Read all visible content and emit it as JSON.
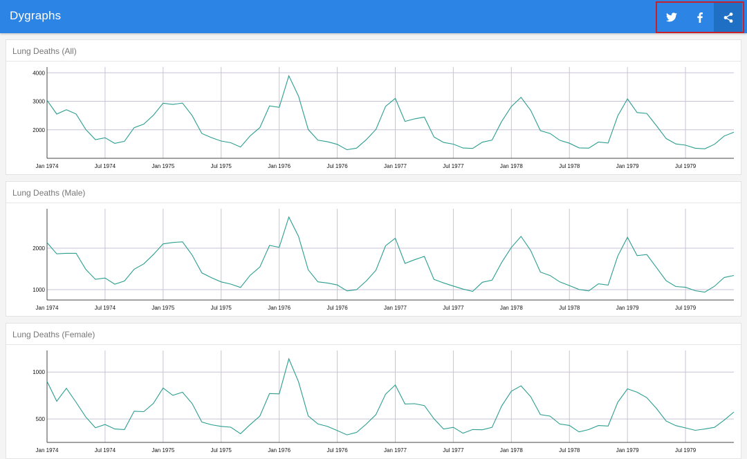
{
  "app": {
    "title": "Dygraphs"
  },
  "share": {
    "buttons": [
      {
        "name": "twitter",
        "icon": "twitter-icon"
      },
      {
        "name": "facebook",
        "icon": "facebook-icon"
      },
      {
        "name": "share",
        "icon": "share-icon"
      }
    ]
  },
  "colors": {
    "header": "#2c84e4",
    "line": "#2a9d8f",
    "highlight_box": "#c8202a"
  },
  "chart_data": [
    {
      "type": "line",
      "title": "Lung Deaths (All)",
      "series_color": "#2a9d8f",
      "x_start": "Jan 1974",
      "x_end": "Dec 1979",
      "x_ticks": [
        "Jan 1974",
        "Jul 1974",
        "Jan 1975",
        "Jul 1975",
        "Jan 1976",
        "Jul 1976",
        "Jan 1977",
        "Jul 1977",
        "Jan 1978",
        "Jul 1978",
        "Jan 1979",
        "Jul 1979"
      ],
      "y_ticks": [
        2000,
        3000,
        4000
      ],
      "ylim": [
        1000,
        4200
      ],
      "grid": true,
      "values": [
        3035,
        2552,
        2704,
        2554,
        2014,
        1655,
        1721,
        1524,
        1596,
        2074,
        2199,
        2512,
        2933,
        2889,
        2938,
        2497,
        1870,
        1726,
        1607,
        1545,
        1396,
        1787,
        2076,
        2837,
        2787,
        3891,
        3179,
        2011,
        1636,
        1580,
        1489,
        1300,
        1356,
        1653,
        2013,
        2823,
        3102,
        2294,
        2385,
        2444,
        1748,
        1554,
        1498,
        1361,
        1346,
        1564,
        1640,
        2293,
        2815,
        3137,
        2679,
        1969,
        1870,
        1633,
        1529,
        1366,
        1357,
        1570,
        1535,
        2491,
        3084,
        2605,
        2573,
        2143,
        1693,
        1504,
        1461,
        1354,
        1333,
        1492,
        1781,
        1915
      ]
    },
    {
      "type": "line",
      "title": "Lung Deaths (Male)",
      "series_color": "#2a9d8f",
      "x_start": "Jan 1974",
      "x_end": "Dec 1979",
      "x_ticks": [
        "Jan 1974",
        "Jul 1974",
        "Jan 1975",
        "Jul 1975",
        "Jan 1976",
        "Jul 1976",
        "Jan 1977",
        "Jul 1977",
        "Jan 1978",
        "Jul 1978",
        "Jan 1979",
        "Jul 1979"
      ],
      "y_ticks": [
        1000,
        2000
      ],
      "ylim": [
        750,
        2950
      ],
      "grid": true,
      "values": [
        2134,
        1863,
        1877,
        1877,
        1492,
        1249,
        1280,
        1131,
        1209,
        1492,
        1621,
        1846,
        2103,
        2137,
        2153,
        1833,
        1403,
        1288,
        1186,
        1133,
        1053,
        1347,
        1545,
        2066,
        2020,
        2750,
        2283,
        1479,
        1189,
        1160,
        1113,
        970,
        999,
        1208,
        1467,
        2059,
        2240,
        1634,
        1722,
        1801,
        1246,
        1162,
        1087,
        1013,
        959,
        1179,
        1229,
        1655,
        2019,
        2284,
        1942,
        1423,
        1340,
        1187,
        1098,
        1004,
        970,
        1140,
        1110,
        1812,
        2263,
        1820,
        1846,
        1531,
        1215,
        1075,
        1056,
        975,
        940,
        1081,
        1294,
        1341
      ]
    },
    {
      "type": "line",
      "title": "Lung Deaths (Female)",
      "series_color": "#2a9d8f",
      "x_start": "Jan 1974",
      "x_end": "Dec 1979",
      "x_ticks": [
        "Jan 1974",
        "Jul 1974",
        "Jan 1975",
        "Jul 1975",
        "Jan 1976",
        "Jul 1976",
        "Jan 1977",
        "Jul 1977",
        "Jan 1978",
        "Jul 1978",
        "Jan 1979",
        "Jul 1979"
      ],
      "y_ticks": [
        500,
        1000
      ],
      "ylim": [
        250,
        1230
      ],
      "grid": true,
      "values": [
        901,
        689,
        827,
        677,
        522,
        406,
        441,
        393,
        387,
        582,
        578,
        666,
        830,
        752,
        785,
        664,
        467,
        438,
        421,
        412,
        343,
        440,
        531,
        771,
        767,
        1141,
        896,
        532,
        447,
        420,
        376,
        330,
        357,
        445,
        546,
        764,
        862,
        660,
        663,
        643,
        502,
        392,
        411,
        348,
        387,
        385,
        411,
        638,
        796,
        853,
        737,
        546,
        530,
        446,
        431,
        362,
        387,
        430,
        425,
        679,
        821,
        785,
        727,
        612,
        478,
        429,
        405,
        379,
        393,
        411,
        487,
        574
      ]
    }
  ]
}
